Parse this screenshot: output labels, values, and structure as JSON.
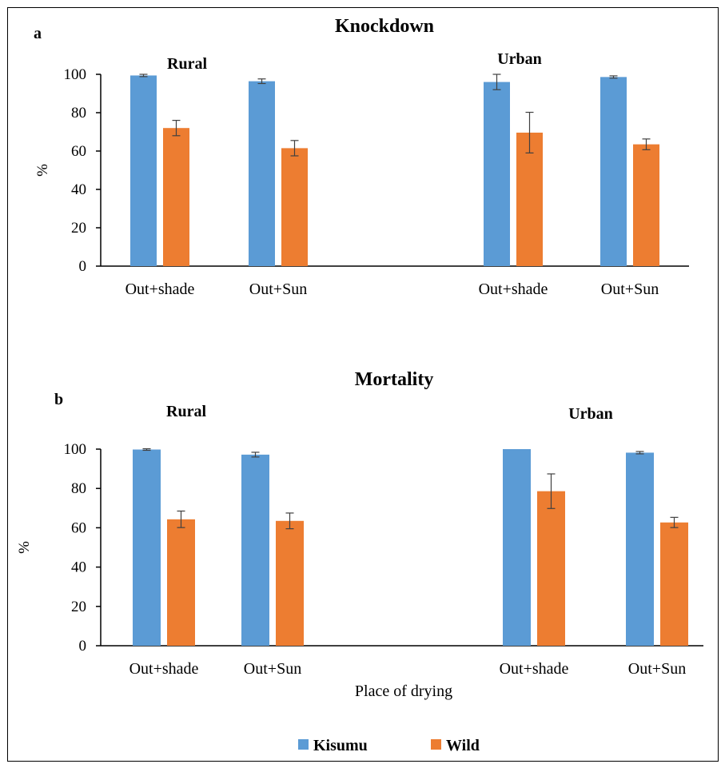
{
  "figure": {
    "legend": [
      {
        "name": "Kisumu",
        "color": "#5b9bd5"
      },
      {
        "name": "Wild",
        "color": "#ed7d31"
      }
    ]
  },
  "chart_data": [
    {
      "type": "bar",
      "panel_label": "a",
      "title": "Knockdown",
      "ylabel": "%",
      "xlabel": "",
      "ylim": [
        0,
        100
      ],
      "yticks": [
        0,
        20,
        40,
        60,
        80,
        100
      ],
      "groups": [
        "Rural",
        "Urban"
      ],
      "categories": [
        "Out+shade",
        "Out+Sun",
        "Out+shade",
        "Out+Sun"
      ],
      "series": [
        {
          "name": "Kisumu",
          "values": [
            99.4,
            96.4,
            96.0,
            98.6
          ],
          "errors": [
            0.6,
            1.2,
            4.0,
            0.6
          ]
        },
        {
          "name": "Wild",
          "values": [
            72.0,
            61.5,
            69.6,
            63.5
          ],
          "errors": [
            4.0,
            4.0,
            10.6,
            2.8
          ]
        }
      ]
    },
    {
      "type": "bar",
      "panel_label": "b",
      "title": "Mortality",
      "ylabel": "%",
      "xlabel": "Place of drying",
      "ylim": [
        0,
        100
      ],
      "yticks": [
        0,
        20,
        40,
        60,
        80,
        100
      ],
      "groups": [
        "Rural",
        "Urban"
      ],
      "categories": [
        "Out+shade",
        "Out+Sun",
        "Out+shade",
        "Out+Sun"
      ],
      "series": [
        {
          "name": "Kisumu",
          "values": [
            99.8,
            97.2,
            100.0,
            98.2
          ],
          "errors": [
            0.4,
            1.2,
            0.0,
            0.6
          ]
        },
        {
          "name": "Wild",
          "values": [
            64.3,
            63.5,
            78.6,
            62.7
          ],
          "errors": [
            4.2,
            4.0,
            8.8,
            2.6
          ]
        }
      ]
    }
  ]
}
